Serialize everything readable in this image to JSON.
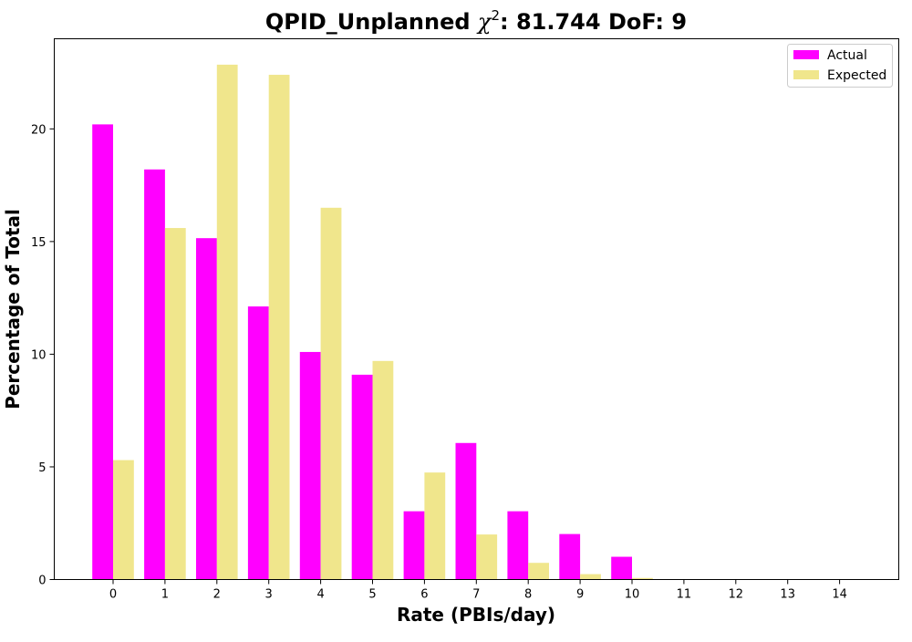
{
  "chart_data": {
    "type": "bar",
    "title": {
      "prefix": "QPID_Unplanned ",
      "chi_symbol": "χ",
      "chi_exponent": "2",
      "suffix": ": 81.744 DoF: 9"
    },
    "xlabel": "Rate (PBIs/day)",
    "ylabel": "Percentage of Total",
    "categories": [
      "0",
      "1",
      "2",
      "3",
      "4",
      "5",
      "6",
      "7",
      "8",
      "9",
      "10",
      "11",
      "12",
      "13",
      "14"
    ],
    "ylim": [
      0,
      24
    ],
    "yticks": [
      0,
      5,
      10,
      15,
      20
    ],
    "grid": false,
    "legend_position": "top-right",
    "series": [
      {
        "name": "Actual",
        "color": "#ff00ff",
        "values": [
          20.2,
          18.2,
          15.15,
          12.12,
          10.1,
          9.09,
          3.03,
          6.06,
          3.03,
          2.02,
          1.01,
          0,
          0,
          0,
          0
        ]
      },
      {
        "name": "Expected",
        "color": "#f0e68c",
        "values": [
          5.3,
          15.6,
          22.85,
          22.4,
          16.5,
          9.7,
          4.75,
          2.0,
          0.74,
          0.24,
          0.07,
          0.02,
          0.004,
          0.001,
          0.0002
        ]
      }
    ]
  }
}
